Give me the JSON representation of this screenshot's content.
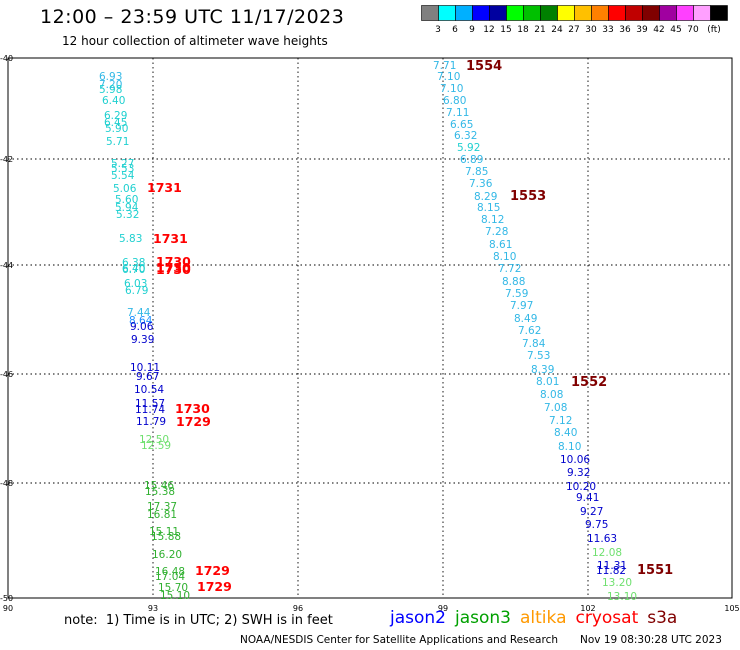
{
  "header": {
    "title": "12:00 – 23:59 UTC 11/17/2023",
    "subtitle": "12 hour collection of altimeter wave heights"
  },
  "colorbar": {
    "colors": [
      "#808080",
      "#00ffff",
      "#00b0ff",
      "#0000ff",
      "#0000a0",
      "#00ff00",
      "#00c000",
      "#008000",
      "#ffff00",
      "#ffc000",
      "#ff8000",
      "#ff0000",
      "#c00000",
      "#800000",
      "#a000a0",
      "#ff40ff",
      "#ffa0ff",
      "#000000"
    ],
    "labels": [
      "3",
      "6",
      "9",
      "12",
      "15",
      "18",
      "21",
      "24",
      "27",
      "30",
      "33",
      "36",
      "39",
      "42",
      "45",
      "70",
      "(ft)"
    ]
  },
  "map": {
    "lon_ticks": [
      "90",
      "93",
      "96",
      "99",
      "102",
      "105"
    ],
    "lat_ticks": [
      "-40",
      "-42",
      "-44",
      "-46",
      "-48",
      "-50"
    ]
  },
  "tracks": [
    {
      "name": "track-west",
      "points": [
        {
          "v": "6.93",
          "c": "#33b8e6"
        },
        {
          "v": "7.20",
          "c": "#33b8e6"
        },
        {
          "v": "5.98",
          "c": "#20d0d0"
        },
        {
          "v": "6.40",
          "c": "#20d0d0"
        },
        {
          "v": "6.29",
          "c": "#20d0d0"
        },
        {
          "v": "6.45",
          "c": "#20d0d0"
        },
        {
          "v": "5.90",
          "c": "#20d0d0"
        },
        {
          "v": "5.71",
          "c": "#20d0d0"
        },
        {
          "v": "5.27",
          "c": "#20d0d0"
        },
        {
          "v": "5.53",
          "c": "#20d0d0"
        },
        {
          "v": "5.54",
          "c": "#20d0d0"
        },
        {
          "v": "5.06",
          "c": "#20d0d0"
        },
        {
          "v": "5.60",
          "c": "#20d0d0"
        },
        {
          "v": "5.94",
          "c": "#20d0d0"
        },
        {
          "v": "5.32",
          "c": "#20d0d0"
        },
        {
          "v": "5.83",
          "c": "#20d0d0"
        },
        {
          "v": "6.38",
          "c": "#20d0d0"
        },
        {
          "v": "6.40",
          "c": "#20d0d0"
        },
        {
          "v": "6.70",
          "c": "#20d0d0"
        },
        {
          "v": "6.03",
          "c": "#20d0d0"
        },
        {
          "v": "6.79",
          "c": "#20d0d0"
        },
        {
          "v": "7.44",
          "c": "#33b8e6"
        },
        {
          "v": "8.64",
          "c": "#1e90ff"
        },
        {
          "v": "9.06",
          "c": "#0000cc"
        },
        {
          "v": "9.39",
          "c": "#0000cc"
        },
        {
          "v": "10.11",
          "c": "#0000cc"
        },
        {
          "v": "9.67",
          "c": "#0000cc"
        },
        {
          "v": "10.54",
          "c": "#0000cc"
        },
        {
          "v": "11.57",
          "c": "#0000cc"
        },
        {
          "v": "11.74",
          "c": "#0000cc"
        },
        {
          "v": "11.79",
          "c": "#0000cc"
        },
        {
          "v": "12.50",
          "c": "#70e070"
        },
        {
          "v": "12.59",
          "c": "#70e070"
        },
        {
          "v": "15.46",
          "c": "#30b030"
        },
        {
          "v": "15.38",
          "c": "#30b030"
        },
        {
          "v": "17.37",
          "c": "#30b030"
        },
        {
          "v": "16.81",
          "c": "#30b030"
        },
        {
          "v": "15.11",
          "c": "#30b030"
        },
        {
          "v": "15.88",
          "c": "#30b030"
        },
        {
          "v": "16.20",
          "c": "#30b030"
        },
        {
          "v": "16.48",
          "c": "#30b030"
        },
        {
          "v": "17.04",
          "c": "#30b030"
        },
        {
          "v": "15.70",
          "c": "#30b030"
        },
        {
          "v": "15.10",
          "c": "#30b030"
        }
      ]
    },
    {
      "name": "track-west-times",
      "points": [
        {
          "v": "1731",
          "c": "#ff0000"
        },
        {
          "v": "1731",
          "c": "#ff0000"
        },
        {
          "v": "1730",
          "c": "#ff0000"
        },
        {
          "v": "1730",
          "c": "#ff0000"
        },
        {
          "v": "1730",
          "c": "#ff0000"
        },
        {
          "v": "1730",
          "c": "#ff0000"
        },
        {
          "v": "1729",
          "c": "#ff0000"
        },
        {
          "v": "1729",
          "c": "#ff0000"
        },
        {
          "v": "1729",
          "c": "#ff0000"
        }
      ]
    },
    {
      "name": "track-east",
      "points": [
        {
          "v": "7.71",
          "c": "#33b8e6"
        },
        {
          "v": "7.10",
          "c": "#33b8e6"
        },
        {
          "v": "7.10",
          "c": "#33b8e6"
        },
        {
          "v": "6.80",
          "c": "#33b8e6"
        },
        {
          "v": "7.11",
          "c": "#33b8e6"
        },
        {
          "v": "6.65",
          "c": "#33b8e6"
        },
        {
          "v": "6.32",
          "c": "#33b8e6"
        },
        {
          "v": "5.92",
          "c": "#20d0d0"
        },
        {
          "v": "6.89",
          "c": "#33b8e6"
        },
        {
          "v": "7.85",
          "c": "#33b8e6"
        },
        {
          "v": "7.36",
          "c": "#33b8e6"
        },
        {
          "v": "8.29",
          "c": "#33b8e6"
        },
        {
          "v": "8.15",
          "c": "#33b8e6"
        },
        {
          "v": "8.12",
          "c": "#33b8e6"
        },
        {
          "v": "7.28",
          "c": "#33b8e6"
        },
        {
          "v": "8.61",
          "c": "#33b8e6"
        },
        {
          "v": "8.10",
          "c": "#33b8e6"
        },
        {
          "v": "7.72",
          "c": "#33b8e6"
        },
        {
          "v": "8.88",
          "c": "#33b8e6"
        },
        {
          "v": "7.59",
          "c": "#33b8e6"
        },
        {
          "v": "7.97",
          "c": "#33b8e6"
        },
        {
          "v": "8.49",
          "c": "#33b8e6"
        },
        {
          "v": "7.62",
          "c": "#33b8e6"
        },
        {
          "v": "7.84",
          "c": "#33b8e6"
        },
        {
          "v": "7.53",
          "c": "#33b8e6"
        },
        {
          "v": "8.39",
          "c": "#33b8e6"
        },
        {
          "v": "8.01",
          "c": "#33b8e6"
        },
        {
          "v": "8.08",
          "c": "#33b8e6"
        },
        {
          "v": "7.08",
          "c": "#33b8e6"
        },
        {
          "v": "7.12",
          "c": "#33b8e6"
        },
        {
          "v": "8.40",
          "c": "#33b8e6"
        },
        {
          "v": "8.10",
          "c": "#33b8e6"
        },
        {
          "v": "10.06",
          "c": "#0000cc"
        },
        {
          "v": "9.32",
          "c": "#0000cc"
        },
        {
          "v": "10.20",
          "c": "#0000cc"
        },
        {
          "v": "9.41",
          "c": "#0000cc"
        },
        {
          "v": "9.27",
          "c": "#0000cc"
        },
        {
          "v": "9.75",
          "c": "#0000cc"
        },
        {
          "v": "11.63",
          "c": "#0000cc"
        },
        {
          "v": "12.08",
          "c": "#70e070"
        },
        {
          "v": "11.31",
          "c": "#0000cc"
        },
        {
          "v": "11.82",
          "c": "#0000cc"
        },
        {
          "v": "13.20",
          "c": "#70e070"
        },
        {
          "v": "13.10",
          "c": "#70e070"
        }
      ]
    },
    {
      "name": "track-east-times",
      "points": [
        {
          "v": "1554",
          "c": "#800000"
        },
        {
          "v": "1553",
          "c": "#800000"
        },
        {
          "v": "1552",
          "c": "#800000"
        },
        {
          "v": "1551",
          "c": "#800000"
        }
      ]
    }
  ],
  "footer": {
    "note": "note:  1) Time is in UTC; 2) SWH is in feet",
    "legend": [
      {
        "name": "jason2",
        "color": "#0000ff"
      },
      {
        "name": "jason3",
        "color": "#00a000"
      },
      {
        "name": "altika",
        "color": "#ff9900"
      },
      {
        "name": "cryosat",
        "color": "#ff0000"
      },
      {
        "name": "s3a",
        "color": "#800000"
      }
    ],
    "credit": "NOAA/NESDIS Center for Satellite Applications and Research",
    "timestamp": "Nov 19 08:30:28 UTC 2023"
  }
}
